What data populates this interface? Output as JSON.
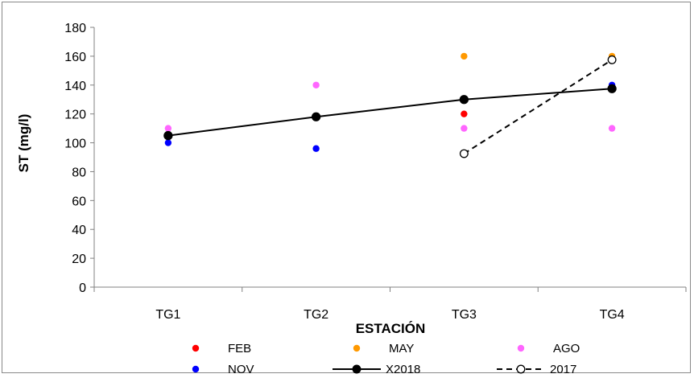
{
  "chart_data": {
    "type": "scatter",
    "xlabel": "ESTACIÓN",
    "ylabel": "ST (mg/l)",
    "categories": [
      "TG1",
      "TG2",
      "TG3",
      "TG4"
    ],
    "ylim": [
      0,
      180
    ],
    "yticks": [
      0,
      20,
      40,
      60,
      80,
      100,
      120,
      140,
      160,
      180
    ],
    "grid": false,
    "legend_position": "bottom",
    "series": [
      {
        "name": "FEB",
        "kind": "points",
        "color": "#ff0000",
        "values": [
          null,
          null,
          120,
          null
        ]
      },
      {
        "name": "MAY",
        "kind": "points",
        "color": "#ff9900",
        "values": [
          null,
          null,
          160,
          160
        ]
      },
      {
        "name": "AGO",
        "kind": "points",
        "color": "#ff66ff",
        "values": [
          110,
          140,
          110,
          110
        ]
      },
      {
        "name": "NOV",
        "kind": "points",
        "color": "#0000ff",
        "values": [
          100,
          96,
          130,
          140
        ]
      },
      {
        "name": "X2018",
        "kind": "line",
        "color": "#000000",
        "marker": "filled",
        "dash": false,
        "values": [
          105,
          118,
          130,
          137.5
        ]
      },
      {
        "name": "2017",
        "kind": "line",
        "color": "#000000",
        "marker": "hollow",
        "dash": true,
        "values": [
          null,
          null,
          92.5,
          157.5
        ]
      }
    ]
  }
}
